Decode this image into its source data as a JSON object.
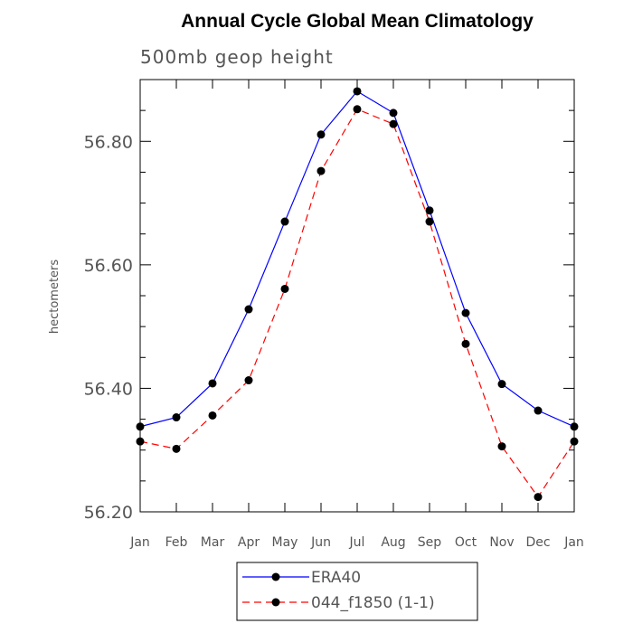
{
  "chart_data": {
    "type": "line",
    "title": "Annual Cycle Global Mean Climatology",
    "subtitle": "500mb geop height",
    "ylabel": "hectometers",
    "xlabel": "",
    "categories": [
      "Jan",
      "Feb",
      "Mar",
      "Apr",
      "May",
      "Jun",
      "Jul",
      "Aug",
      "Sep",
      "Oct",
      "Nov",
      "Dec",
      "Jan"
    ],
    "ylim": [
      56.2,
      56.9
    ],
    "yticks": [
      56.2,
      56.4,
      56.6,
      56.8
    ],
    "ytick_labels": [
      "56.20",
      "56.40",
      "56.60",
      "56.80"
    ],
    "grid": false,
    "legend_position": "bottom-center",
    "series": [
      {
        "name": "ERA40",
        "color": "#0000ff",
        "dash": "solid",
        "values": [
          56.338,
          56.353,
          56.408,
          56.528,
          56.67,
          56.811,
          56.881,
          56.846,
          56.688,
          56.522,
          56.407,
          56.364,
          56.338
        ]
      },
      {
        "name": "044_f1850 (1-1)",
        "color": "#ff0000",
        "dash": "dashed",
        "values": [
          56.314,
          56.302,
          56.356,
          56.413,
          56.561,
          56.752,
          56.852,
          56.828,
          56.67,
          56.472,
          56.306,
          56.224,
          56.314
        ]
      }
    ]
  }
}
